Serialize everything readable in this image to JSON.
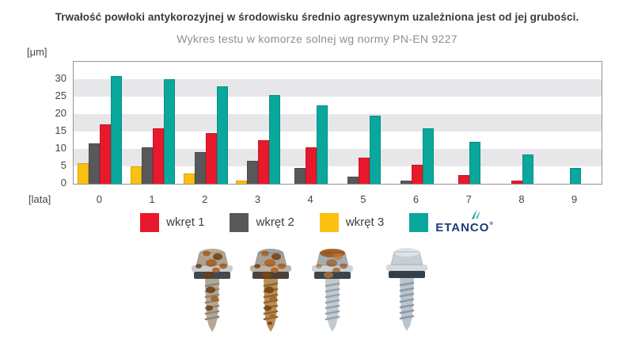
{
  "chart_data": {
    "type": "bar",
    "title": "Trwałość powłoki antykorozyjnej w środowisku średnio agresywnym uzależniona jest od jej grubości.",
    "subtitle": "Wykres testu w komorze solnej wg normy PN-EN 9227",
    "ylabel": "[μm]",
    "xlabel": "[lata]",
    "categories": [
      "0",
      "1",
      "2",
      "3",
      "4",
      "5",
      "6",
      "7",
      "8",
      "9"
    ],
    "yticks": [
      0,
      5,
      10,
      15,
      20,
      25,
      30
    ],
    "ylim": [
      0,
      35
    ],
    "grid_bands": {
      "color": "#e7e7e9",
      "ranges": [
        [
          5,
          10
        ],
        [
          15,
          20
        ],
        [
          25,
          30
        ]
      ]
    },
    "legend_position": "bottom",
    "bar_display_order": [
      "wkręt 3",
      "wkręt 2",
      "wkręt 1",
      "ETANCO"
    ],
    "series": [
      {
        "name": "wkręt 1",
        "color": "#e8192c",
        "values": [
          17,
          16,
          14.5,
          12.5,
          10.5,
          7.5,
          5.5,
          2.5,
          1,
          0
        ]
      },
      {
        "name": "wkręt 2",
        "color": "#58585a",
        "values": [
          11.5,
          10.5,
          9,
          6.5,
          4.5,
          2,
          1,
          0,
          0,
          0
        ]
      },
      {
        "name": "wkręt 3",
        "color": "#fcc011",
        "values": [
          6,
          5,
          3,
          1,
          0,
          0,
          0,
          0,
          0,
          0
        ]
      },
      {
        "name": "ETANCO",
        "color": "#0aa79d",
        "values": [
          31,
          30,
          28,
          25.5,
          22.5,
          19.5,
          16,
          12,
          8.5,
          4.5
        ]
      }
    ]
  },
  "legend": {
    "items": [
      {
        "label": "wkręt 1",
        "color": "#e8192c"
      },
      {
        "label": "wkręt 2",
        "color": "#58585a"
      },
      {
        "label": "wkręt 3",
        "color": "#fcc011"
      }
    ],
    "etanco": {
      "swatch_color": "#0aa79d",
      "text": "ETANCO",
      "reg": "®",
      "text_color": "#1d3b7b",
      "icon_color": "#14a59c"
    }
  },
  "screws": [
    {
      "condition": "corroded screw year 0",
      "head": "#aca28f",
      "headTop": "#b7ab96",
      "washer": "#c9ccce",
      "gasket": "#41484e",
      "shaft": "#b3a894",
      "thread": "#8f8676",
      "rust": "#a85b20",
      "rust2": "#6e3c12",
      "rust_level": 0.85
    },
    {
      "condition": "heavily corroded screw",
      "head": "#a9a195",
      "headTop": "#9aa3a8",
      "washer": "#b9b2a2",
      "gasket": "#4a4238",
      "shaft": "#b98f55",
      "thread": "#8a6a33",
      "rust": "#b06424",
      "rust2": "#7a4416",
      "rust_level": 1.0
    },
    {
      "condition": "corroded head screw",
      "head": "#a5adb4",
      "headTop": "#a3622a",
      "washer": "#ccd3d8",
      "gasket": "#39444c",
      "shaft": "#c2c9cf",
      "thread": "#97a2ab",
      "rust": "#9e5a22",
      "rust2": "#c07a33",
      "rust_level": 0.55
    },
    {
      "condition": "clean galvanized ETANCO screw",
      "head": "#c7ced6",
      "headTop": "#dde3e8",
      "washer": "#d3dae0",
      "gasket": "#333f49",
      "shaft": "#bac4cc",
      "thread": "#8e9aa5",
      "rust": "#b06424",
      "rust2": "#7a4416",
      "rust_level": 0
    }
  ]
}
